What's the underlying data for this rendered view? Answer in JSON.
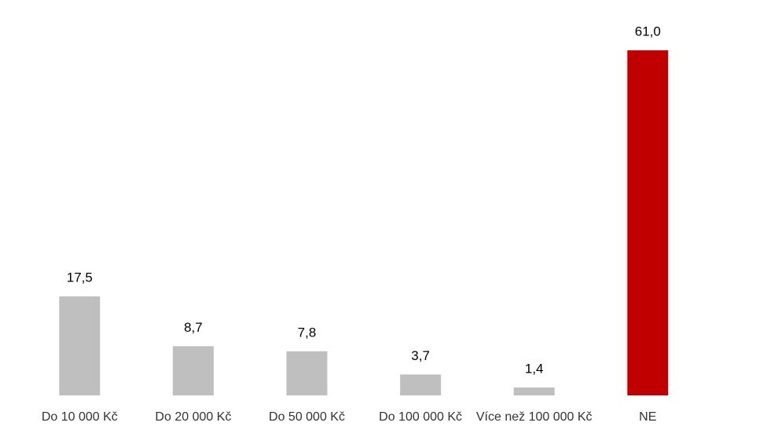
{
  "chart_data": {
    "type": "bar",
    "categories": [
      "Do 10 000 Kč",
      "Do 20 000 Kč",
      "Do 50 000 Kč",
      "Do 100 000 Kč",
      "Více než 100 000 Kč",
      "NE"
    ],
    "values": [
      17.5,
      8.7,
      7.8,
      3.7,
      1.4,
      61.0
    ],
    "value_labels": [
      "17,5",
      "8,7",
      "7,8",
      "3,7",
      "1,4",
      "61,0"
    ],
    "colors": [
      "#bfbfbf",
      "#bfbfbf",
      "#bfbfbf",
      "#bfbfbf",
      "#bfbfbf",
      "#c00000"
    ]
  }
}
